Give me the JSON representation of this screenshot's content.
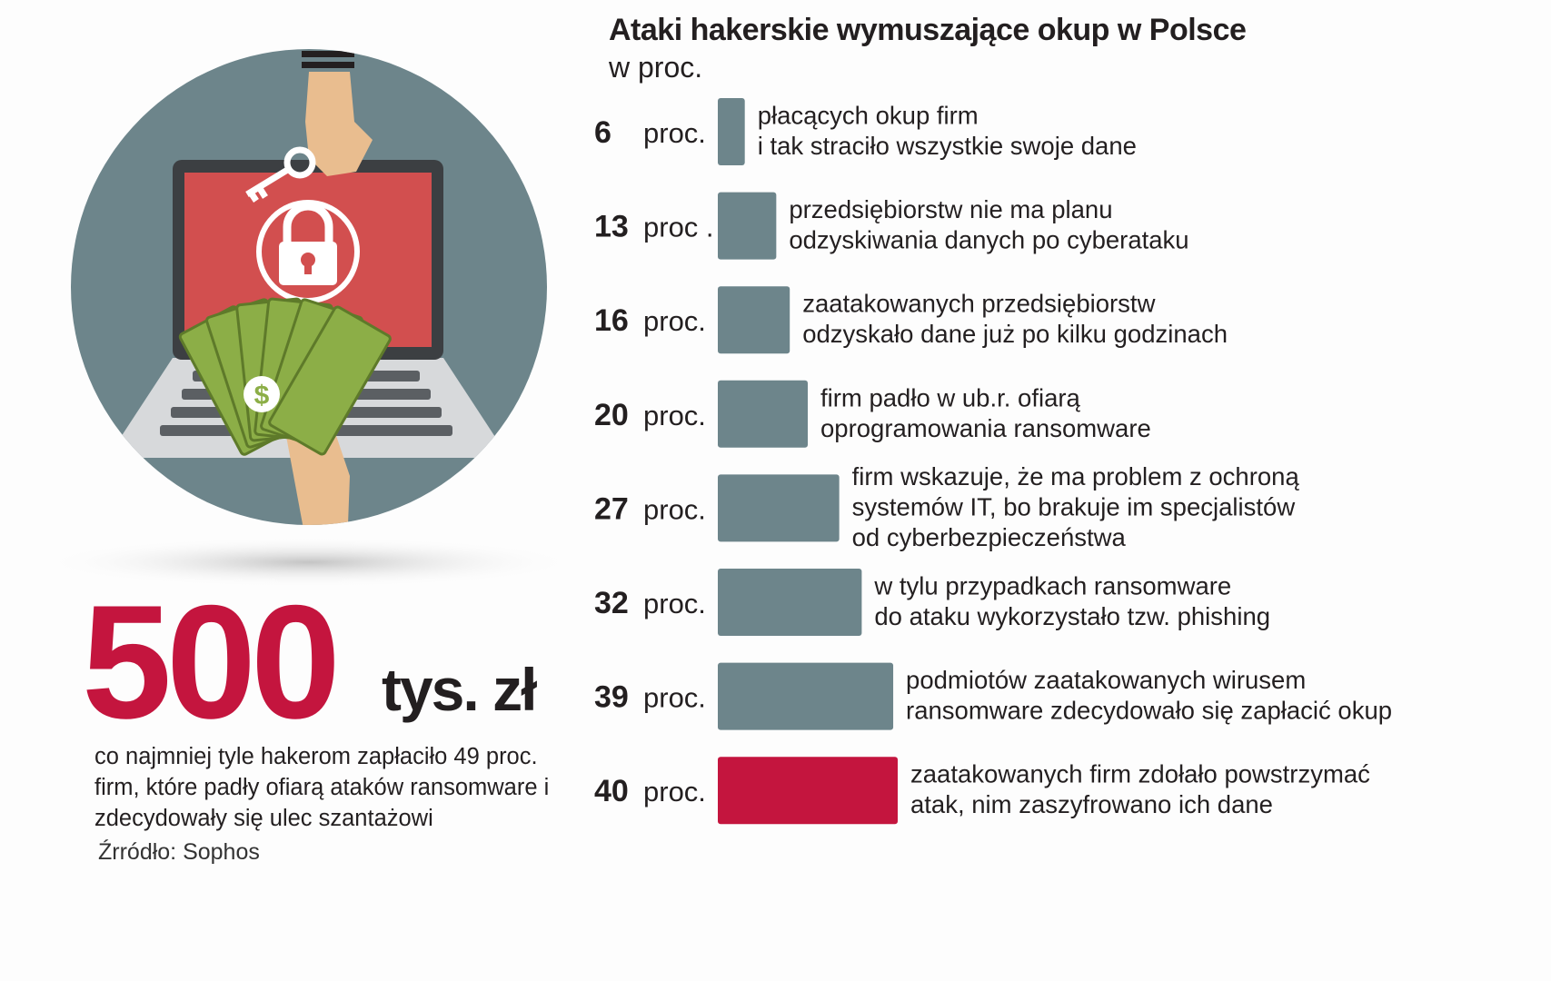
{
  "chart_data": {
    "type": "bar",
    "orientation": "horizontal",
    "title": "Ataki hakerskie wymuszające okup w Polsce",
    "subtitle": "w proc.",
    "unit": "proc.",
    "categories": [
      "płacących okup firm i tak straciło wszystkie swoje dane",
      "przedsiębiorstw nie ma planu odzyskiwania danych po cyberataku",
      "zaatakowanych przedsiębiorstw odzyskało dane już po kilku godzinach",
      "firm padło w ub.r. ofiarą oprogramowania ransomware",
      "firm wskazuje, że ma problem z ochroną systemów IT, bo brakuje im specjalistów od cyberbezpieczeństwa",
      "w tylu przypadkach ransomware do ataku wykorzystało tzw. phishing",
      "podmiotów zaatakowanych wirusem ransomware zdecydowało się zapłacić okup",
      "zaatakowanych firm zdołało powstrzymać atak, nim zaszyfrowano ich dane"
    ],
    "values": [
      6,
      13,
      16,
      20,
      27,
      32,
      39,
      40
    ],
    "value_labels": [
      "6",
      "13",
      "16",
      "20",
      "27",
      "32",
      "39",
      "40"
    ],
    "unit_labels": [
      "proc.",
      "proc .",
      "proc.",
      "proc.",
      "proc.",
      "proc.",
      "proc.",
      "proc."
    ],
    "label_lines": [
      [
        "płacących okup firm",
        "i tak straciło wszystkie swoje dane"
      ],
      [
        "przedsiębiorstw nie ma planu",
        "odzyskiwania danych po cyberataku"
      ],
      [
        "zaatakowanych przedsiębiorstw",
        "odzyskało dane już po kilku godzinach"
      ],
      [
        "firm padło w ub.r. ofiarą",
        "oprogramowania ransomware"
      ],
      [
        "firm wskazuje, że ma problem z ochroną",
        "systemów IT, bo brakuje im specjalistów",
        "od cyberbezpieczeństwa"
      ],
      [
        "w tylu przypadkach ransomware",
        "do ataku wykorzystało tzw. phishing"
      ],
      [
        "podmiotów zaatakowanych wirusem",
        "ransomware zdecydowało się zapłacić okup"
      ],
      [
        "zaatakowanych firm zdołało powstrzymać",
        "atak, nim zaszyfrowano ich dane"
      ]
    ],
    "highlight_index": 7,
    "xlim": [
      0,
      40
    ],
    "colors": {
      "bar": "#6d858b",
      "highlight": "#c4153e"
    }
  },
  "highlight": {
    "number": "500",
    "unit": "tys. zł",
    "description": "co najmniej tyle hakerom zapłaciło 49 proc. firm, które padły ofiarą ataków ransomware i zdecydowały się ulec szantażowi"
  },
  "source": "Źrródło: Sophos",
  "colors": {
    "accent": "#c4153e",
    "circle": "#6d858b",
    "screen": "#d24f4f",
    "money": "#8cae47"
  },
  "icons": [
    "ransomware-laptop-illustration",
    "padlock-icon",
    "key-icon",
    "money-icon"
  ]
}
